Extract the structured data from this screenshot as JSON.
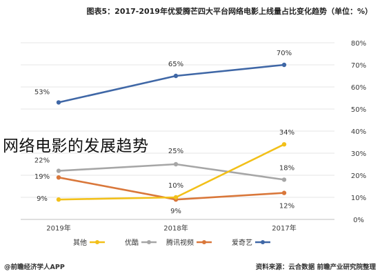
{
  "caption": "网络电影的发展趋势",
  "chart_data": {
    "type": "line",
    "title": "图表5：2017-2019年优爱腾芒四大平台网络电影上线量占比变化趋势（单位：%）",
    "source": "资料来源：云合数据 前瞻产业研究院整理",
    "watermark": "@前瞻经济学人APP",
    "categories": [
      "2017年",
      "2018年",
      "2019年"
    ],
    "ylim": [
      0,
      80
    ],
    "yticks": [
      "0%",
      "10%",
      "20%",
      "30%",
      "40%",
      "50%",
      "60%",
      "70%",
      "80%"
    ],
    "series": [
      {
        "name": "爱奇艺",
        "color": "#3f67a6",
        "values": [
          70,
          65,
          53
        ],
        "labels": [
          "70%",
          "65%",
          "53%"
        ]
      },
      {
        "name": "腾讯视频",
        "color": "#d9773a",
        "values": [
          12,
          9,
          19
        ],
        "labels": [
          "12%",
          "9%",
          "19%"
        ]
      },
      {
        "name": "优酷",
        "color": "#a6a6a6",
        "values": [
          18,
          25,
          22
        ],
        "labels": [
          "18%",
          "25%",
          "22%"
        ]
      },
      {
        "name": "其他",
        "color": "#f2c019",
        "values": [
          34,
          10,
          9
        ],
        "labels": [
          "34%",
          "10%",
          "9%"
        ]
      }
    ]
  }
}
